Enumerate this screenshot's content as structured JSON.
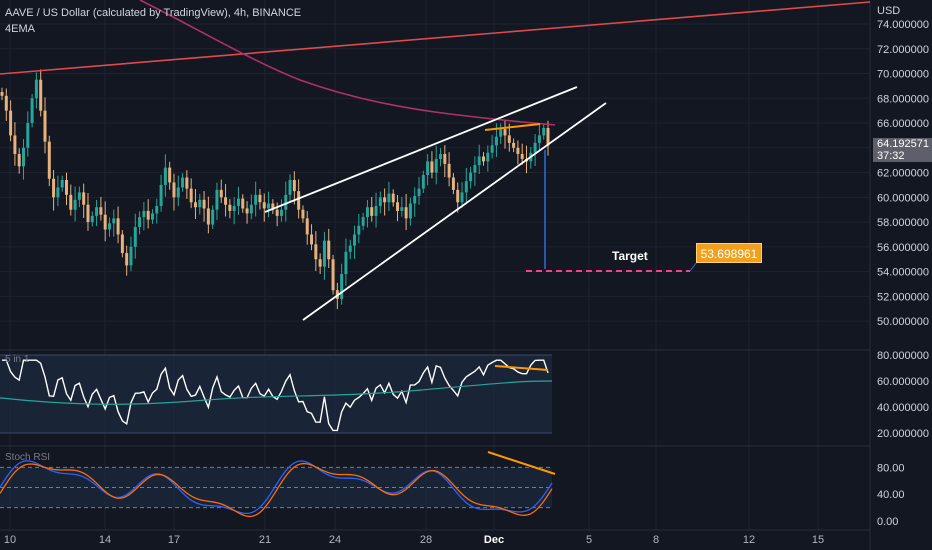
{
  "header": {
    "title": "AAVE / US Dollar (calculated by TradingView), 4h, BINANCE",
    "indicator": "4EMA"
  },
  "price_axis": {
    "currency": "USD",
    "labels": [
      "74.000000",
      "72.000000",
      "70.000000",
      "68.000000",
      "66.000000",
      "64.000000",
      "62.000000",
      "60.000000",
      "58.000000",
      "56.000000",
      "54.000000",
      "52.000000",
      "50.000000"
    ],
    "current_price": "64.192571",
    "countdown": "37:32"
  },
  "target": {
    "label": "Target",
    "value": "53.698961"
  },
  "indicators": [
    {
      "name": "5 in 1",
      "labels": [
        "80.000000",
        "60.000000",
        "40.000000",
        "20.000000"
      ]
    },
    {
      "name": "Stoch RSI",
      "labels": [
        "80.00",
        "40.00",
        "0.00"
      ]
    }
  ],
  "time_axis": {
    "labels": [
      "10",
      "14",
      "17",
      "21",
      "24",
      "28",
      "Dec",
      "5",
      "8",
      "12",
      "15"
    ]
  },
  "colors": {
    "background": "#131722",
    "candle_up": "#26a69a",
    "candle_down": "#e8b27d",
    "ema": "#b0306a",
    "trend_red": "#e04a4a",
    "wedge": "#ffffff",
    "orange": "#ff9800",
    "target_line": "#ff3b8a",
    "target_box": "#f0a01c",
    "rsi_line": "#ffffff",
    "rsi_signal": "#26a69a",
    "stoch_k": "#2962ff",
    "stoch_d": "#ff6d00"
  },
  "chart_data": {
    "type": "candlestick",
    "symbol": "AAVE / US Dollar",
    "timeframe": "4h",
    "y_range": [
      49,
      75
    ],
    "close_series": [
      68.2,
      67.0,
      65.0,
      63.5,
      62.5,
      64.0,
      66.0,
      68.0,
      69.5,
      67.0,
      64.5,
      61.5,
      60.0,
      60.8,
      61.4,
      60.2,
      59.0,
      59.8,
      60.4,
      59.4,
      58.0,
      58.5,
      59.2,
      58.6,
      57.4,
      57.9,
      58.3,
      57.0,
      55.5,
      54.5,
      56.0,
      57.6,
      58.4,
      58.9,
      58.2,
      58.7,
      59.3,
      61.0,
      62.4,
      61.2,
      60.0,
      60.8,
      61.6,
      60.7,
      59.6,
      59.2,
      59.8,
      59.1,
      57.8,
      59.0,
      60.6,
      60.0,
      59.4,
      58.9,
      59.3,
      59.9,
      59.1,
      58.7,
      59.4,
      60.2,
      59.6,
      59.1,
      59.5,
      59.0,
      58.5,
      59.0,
      60.2,
      61.4,
      60.5,
      59.0,
      58.3,
      57.0,
      56.2,
      55.0,
      54.4,
      56.5,
      55.0,
      52.5,
      51.8,
      53.8,
      55.6,
      56.1,
      57.0,
      57.7,
      58.4,
      59.2,
      58.5,
      59.3,
      60.0,
      59.6,
      60.3,
      59.6,
      58.9,
      59.2,
      58.3,
      59.5,
      60.1,
      60.7,
      61.8,
      62.9,
      62.0,
      63.1,
      63.5,
      62.7,
      61.6,
      60.6,
      59.6,
      60.4,
      61.3,
      62.0,
      62.6,
      63.3,
      62.9,
      63.6,
      64.2,
      64.9,
      65.5,
      65.0,
      64.4,
      64.0,
      63.5,
      63.1,
      62.9,
      63.6,
      64.4,
      65.0,
      65.6,
      64.2
    ]
  }
}
